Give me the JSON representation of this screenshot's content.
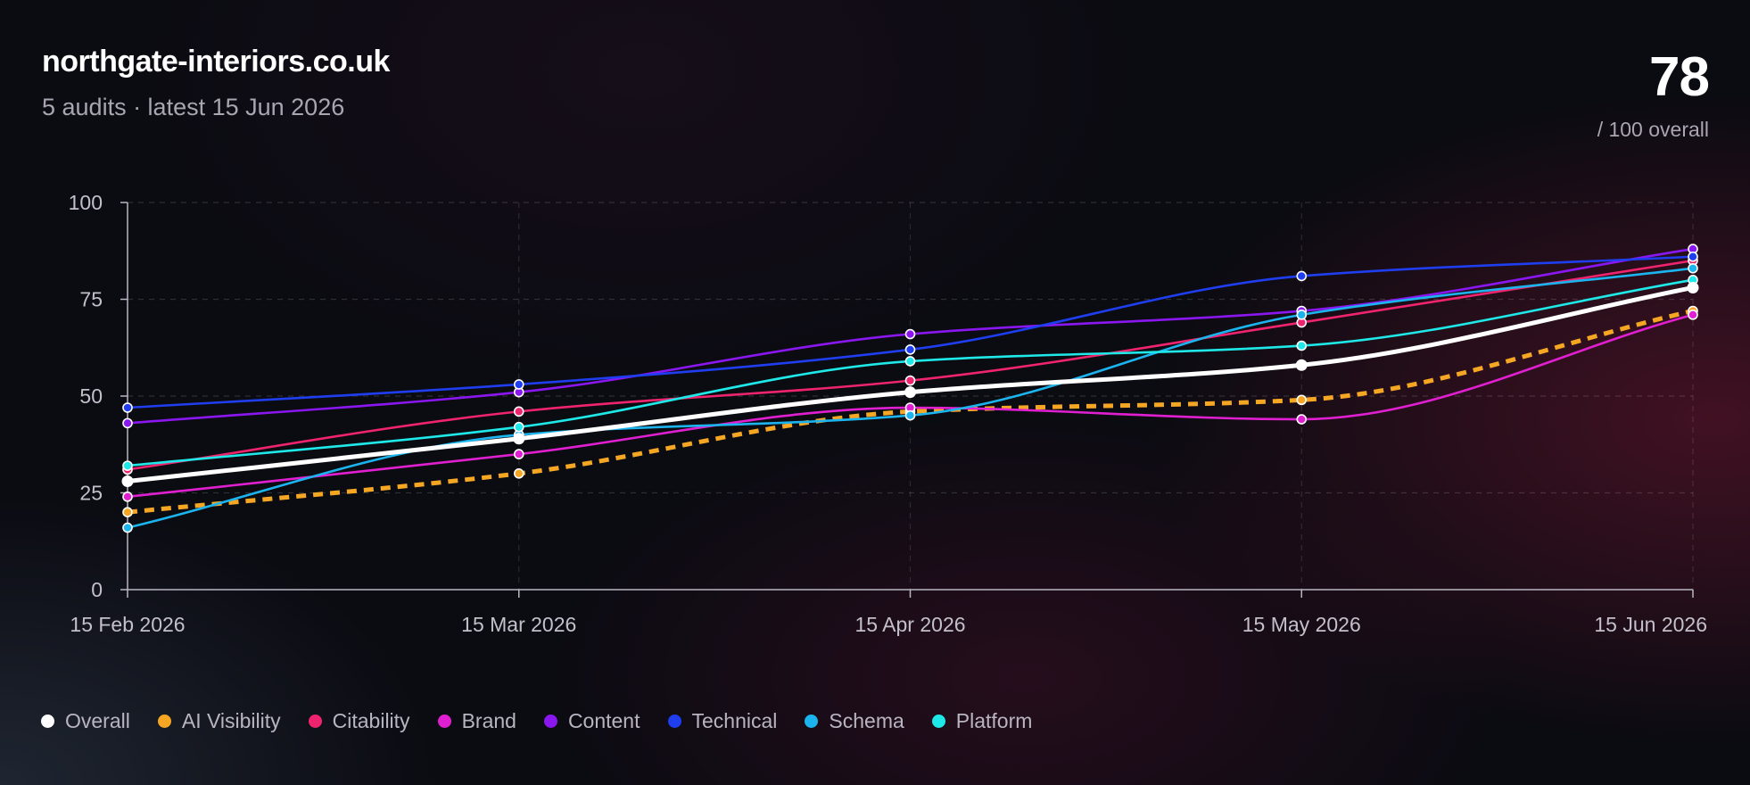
{
  "header": {
    "site": "northgate-interiors.co.uk",
    "subtitle": "5 audits · latest 15 Jun 2026",
    "score": "78",
    "score_label": "/ 100 overall"
  },
  "chart_data": {
    "type": "line",
    "title": "",
    "xlabel": "",
    "ylabel": "",
    "x": [
      "15 Feb 2026",
      "15 Mar 2026",
      "15 Apr 2026",
      "15 May 2026",
      "15 Jun 2026"
    ],
    "ylim": [
      0,
      100
    ],
    "yticks": [
      0,
      25,
      50,
      75,
      100
    ],
    "grid": true,
    "legend_position": "bottom-left",
    "series": [
      {
        "name": "Overall",
        "color": "#ffffff",
        "dashed": false,
        "emphasis": true,
        "values": [
          28,
          39,
          51,
          58,
          78
        ]
      },
      {
        "name": "AI Visibility",
        "color": "#f5a623",
        "dashed": true,
        "emphasis": false,
        "values": [
          20,
          30,
          46,
          49,
          72
        ]
      },
      {
        "name": "Citability",
        "color": "#f0246e",
        "dashed": false,
        "emphasis": false,
        "values": [
          31,
          46,
          54,
          69,
          85
        ]
      },
      {
        "name": "Brand",
        "color": "#e020d0",
        "dashed": false,
        "emphasis": false,
        "values": [
          24,
          35,
          47,
          44,
          71
        ]
      },
      {
        "name": "Content",
        "color": "#8a17f0",
        "dashed": false,
        "emphasis": false,
        "values": [
          43,
          51,
          66,
          72,
          88
        ]
      },
      {
        "name": "Technical",
        "color": "#1f3ef0",
        "dashed": false,
        "emphasis": false,
        "values": [
          47,
          53,
          62,
          81,
          86
        ]
      },
      {
        "name": "Schema",
        "color": "#1cb4ee",
        "dashed": false,
        "emphasis": false,
        "values": [
          16,
          40,
          45,
          71,
          83
        ]
      },
      {
        "name": "Platform",
        "color": "#1ee8e8",
        "dashed": false,
        "emphasis": false,
        "values": [
          32,
          42,
          59,
          63,
          80
        ]
      }
    ]
  }
}
